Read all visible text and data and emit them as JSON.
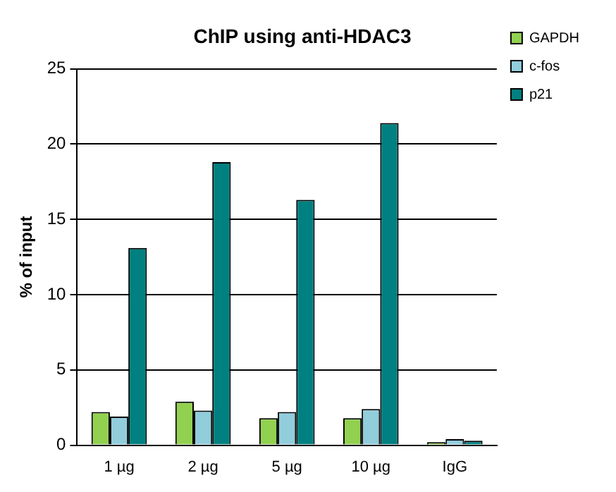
{
  "chart_data": {
    "type": "bar",
    "title": "ChIP using anti-HDAC3",
    "ylabel": "% of input",
    "categories": [
      "1 µg",
      "2 µg",
      "5 µg",
      "10 µg",
      "IgG"
    ],
    "series": [
      {
        "name": "GAPDH",
        "color": "#92d050",
        "values": [
          2.2,
          2.9,
          1.8,
          1.8,
          0.2
        ]
      },
      {
        "name": "c-fos",
        "color": "#92cddc",
        "values": [
          1.9,
          2.3,
          2.2,
          2.4,
          0.4
        ]
      },
      {
        "name": "p21",
        "color": "#008080",
        "values": [
          13.1,
          18.8,
          16.3,
          21.4,
          0.3
        ]
      }
    ],
    "ylim": [
      0,
      25
    ],
    "yticks": [
      0,
      5,
      10,
      15,
      20,
      25
    ],
    "grid": "y",
    "legend": "top right"
  }
}
